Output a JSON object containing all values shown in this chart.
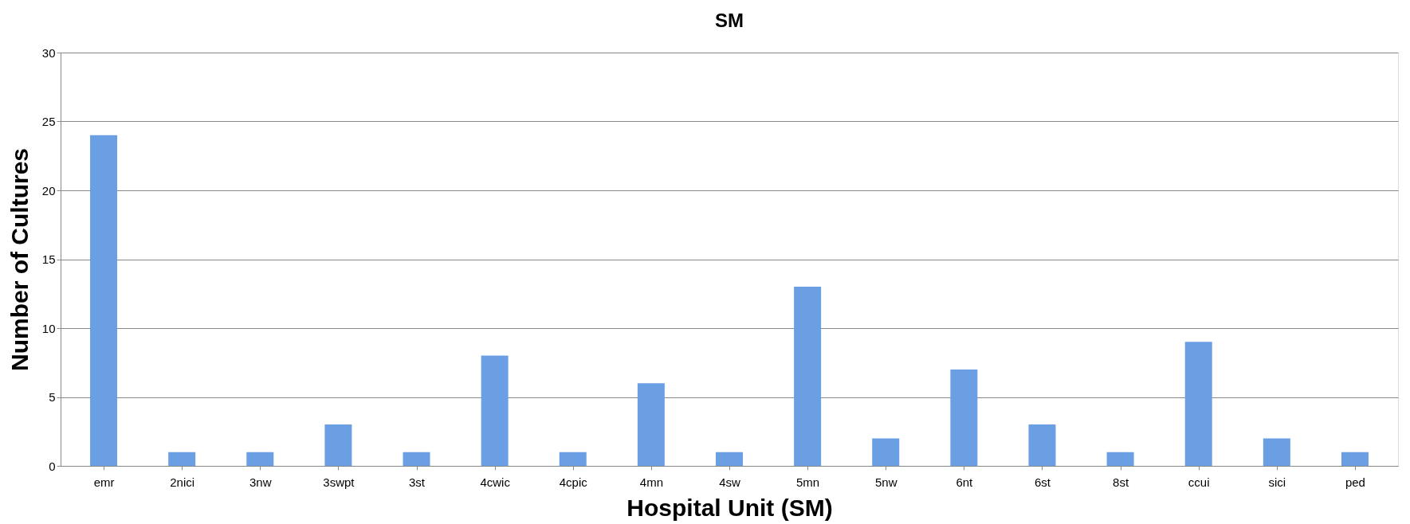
{
  "chart_data": {
    "type": "bar",
    "title": "SM",
    "xlabel": "Hospital Unit (SM)",
    "ylabel": "Number of Cultures",
    "categories": [
      "emr",
      "2nici",
      "3nw",
      "3swpt",
      "3st",
      "4cwic",
      "4cpic",
      "4mn",
      "4sw",
      "5mn",
      "5nw",
      "6nt",
      "6st",
      "8st",
      "ccui",
      "sici",
      "ped"
    ],
    "values": [
      24,
      1,
      1,
      3,
      1,
      8,
      1,
      6,
      1,
      13,
      2,
      7,
      3,
      1,
      9,
      2,
      1
    ],
    "color": "#6a9fe3",
    "ylim": [
      0,
      30
    ],
    "yticks": [
      0,
      5,
      10,
      15,
      20,
      25,
      30
    ],
    "grid": "y"
  }
}
